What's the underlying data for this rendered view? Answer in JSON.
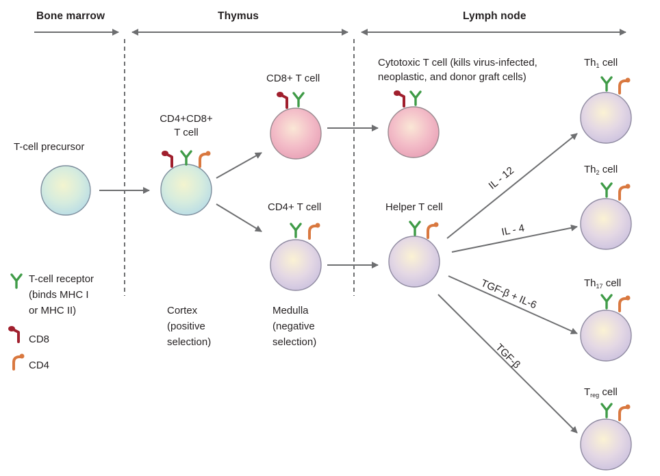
{
  "regions": {
    "bone_marrow": "Bone marrow",
    "thymus": "Thymus",
    "lymph_node": "Lymph node"
  },
  "cells": {
    "precursor": "T-cell precursor",
    "double_positive_line1": "CD4+CD8+",
    "double_positive_line2": "T cell",
    "cd8_t": "CD8+ T cell",
    "cd4_t": "CD4+ T cell",
    "cytotoxic_line1": "Cytotoxic T cell (kills virus-infected,",
    "cytotoxic_line2": "neoplastic, and donor graft cells)",
    "helper": "Helper T cell",
    "th1_main": "Th",
    "th1_sub": "1",
    "th2_main": "Th",
    "th2_sub": "2",
    "th17_main": "Th",
    "th17_sub": "17",
    "treg_main": "T",
    "treg_sub": "reg",
    "cell_word": "cell"
  },
  "cytokines": {
    "il12": "IL - 12",
    "il4": "IL - 4",
    "tgf_il6": "TGF-β + IL-6",
    "tgf": "TGF-β"
  },
  "locations": {
    "cortex_1": "Cortex",
    "cortex_2": "(positive",
    "cortex_3": "selection)",
    "medulla_1": "Medulla",
    "medulla_2": "(negative",
    "medulla_3": "selection)"
  },
  "legend": {
    "tcr_1": "T-cell receptor",
    "tcr_2": "(binds MHC I",
    "tcr_3": "or MHC II)",
    "cd8": "CD8",
    "cd4": "CD4"
  },
  "colors": {
    "tcr": "#3f9b47",
    "cd8": "#a01f2d",
    "cd4": "#d9783f",
    "arrow": "#6d6e70",
    "dashed": "#6d6e70",
    "precursor_cell": "#cfe6e6",
    "cd8_cell": "#eea7b8",
    "cd4_cell": "#d7cfe6"
  }
}
